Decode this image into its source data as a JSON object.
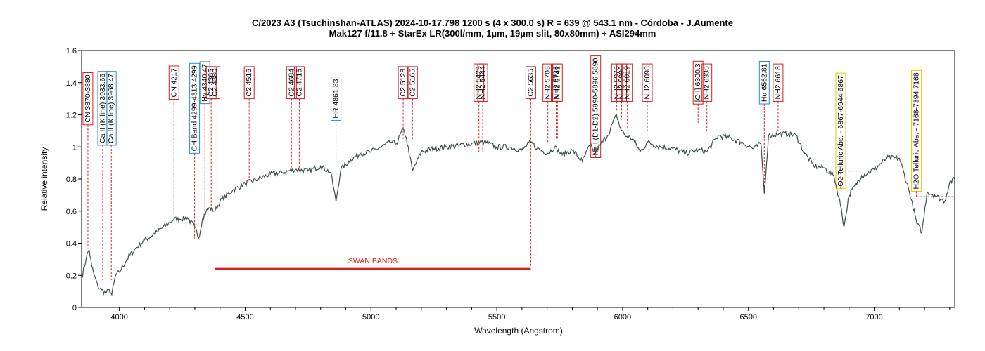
{
  "chart_data": {
    "type": "line",
    "title": "C/2023 A3 (Tsuchinshan-ATLAS)  2024-10-17.798  1200 s (4 x 300.0 s)  R = 639 @ 543.1 nm - Córdoba - J.Aumente",
    "subtitle": "Mak127 f/11.8 + StarEx LR(300l/mm, 1µm, 19µm slit, 80x80mm) + ASI294mm",
    "xlabel": "Wavelength (Angstrom)",
    "ylabel": "Relative intensity",
    "xlim": [
      3850,
      7320
    ],
    "ylim": [
      0,
      1.6
    ],
    "x_ticks": [
      4000,
      4500,
      5000,
      5500,
      6000,
      6500,
      7000
    ],
    "y_ticks": [
      0,
      0.2,
      0.4,
      0.6,
      0.8,
      1,
      1.2,
      1.4,
      1.6
    ],
    "grid": false,
    "line_color": "#3d4f4f",
    "series": [
      {
        "x": [
          3850,
          3870,
          3880,
          3890,
          3900,
          3915,
          3930,
          3945,
          3960,
          3970,
          3985,
          4000,
          4030,
          4060,
          4100,
          4150,
          4200,
          4217,
          4240,
          4270,
          4300,
          4315,
          4330,
          4345,
          4360,
          4380,
          4400,
          4450,
          4500,
          4550,
          4600,
          4650,
          4700,
          4750,
          4800,
          4840,
          4861,
          4880,
          4920,
          4960,
          5000,
          5040,
          5080,
          5100,
          5128,
          5140,
          5165,
          5200,
          5250,
          5300,
          5350,
          5400,
          5450,
          5500,
          5550,
          5600,
          5635,
          5660,
          5703,
          5730,
          5760,
          5800,
          5840,
          5870,
          5890,
          5910,
          5940,
          5976,
          5990,
          6010,
          6040,
          6070,
          6100,
          6150,
          6200,
          6250,
          6300,
          6335,
          6380,
          6420,
          6470,
          6520,
          6550,
          6563,
          6580,
          6620,
          6660,
          6690,
          6720,
          6760,
          6800,
          6840,
          6870,
          6880,
          6900,
          6950,
          7000,
          7050,
          7100,
          7140,
          7170,
          7190,
          7210,
          7240,
          7280,
          7300,
          7320
        ],
        "y": [
          0.18,
          0.32,
          0.36,
          0.26,
          0.2,
          0.13,
          0.11,
          0.09,
          0.11,
          0.08,
          0.2,
          0.22,
          0.3,
          0.36,
          0.42,
          0.47,
          0.53,
          0.55,
          0.55,
          0.56,
          0.5,
          0.43,
          0.55,
          0.6,
          0.62,
          0.6,
          0.66,
          0.73,
          0.77,
          0.8,
          0.83,
          0.84,
          0.86,
          0.85,
          0.88,
          0.84,
          0.66,
          0.86,
          0.92,
          0.96,
          0.97,
          1.0,
          1.03,
          1.02,
          1.11,
          1.06,
          0.85,
          0.97,
          0.99,
          1.0,
          1.01,
          1.02,
          1.03,
          1.0,
          1.0,
          0.98,
          1.03,
          0.99,
          0.96,
          1.0,
          0.95,
          0.98,
          0.91,
          1.01,
          0.97,
          1.01,
          1.07,
          1.2,
          1.12,
          1.07,
          1.05,
          0.97,
          1.03,
          1.0,
          0.99,
          0.96,
          0.98,
          0.97,
          1.07,
          1.06,
          1.03,
          0.99,
          1.02,
          0.71,
          1.07,
          1.08,
          1.08,
          1.07,
          0.97,
          0.88,
          0.87,
          0.82,
          0.61,
          0.5,
          0.7,
          0.82,
          0.86,
          0.93,
          0.93,
          0.72,
          0.52,
          0.47,
          0.72,
          0.7,
          0.66,
          0.78,
          0.8
        ]
      }
    ],
    "swan_bands": {
      "label": "SWAN   BANDS",
      "x_start": 4380,
      "x_end": 5635,
      "y": 0.24
    },
    "annotations": [
      {
        "label": "CN 3870-3880",
        "x": 3875,
        "y_label": 1.3,
        "line_to": 0.37,
        "style": "red"
      },
      {
        "label": "Ca II (K line) 3933.66",
        "x": 3934,
        "y_label": 1.24,
        "line_to": 0.17,
        "style": "blue"
      },
      {
        "label": "Ca II (K line) 3968.47",
        "x": 3968,
        "y_label": 1.24,
        "line_to": 0.17,
        "style": "blue"
      },
      {
        "label": "CN 4217",
        "x": 4217,
        "y_label": 1.4,
        "line_to": 0.58,
        "style": "red"
      },
      {
        "label": "CH Band 4299-4313 4299",
        "x": 4299,
        "y_label": 1.24,
        "line_to": 0.43,
        "style": "blue"
      },
      {
        "label": "Hγ 4340.47",
        "x": 4340,
        "y_label": 1.4,
        "line_to": 0.55,
        "style": "blue"
      },
      {
        "label": "C2 4365",
        "x": 4365,
        "y_label": 1.4,
        "line_to": 0.6,
        "style": "red"
      },
      {
        "label": "C2 4380",
        "x": 4380,
        "y_label": 1.4,
        "line_to": 0.6,
        "style": "red"
      },
      {
        "label": "C2 4516",
        "x": 4516,
        "y_label": 1.4,
        "line_to": 0.8,
        "style": "red"
      },
      {
        "label": "C2 4684",
        "x": 4684,
        "y_label": 1.4,
        "line_to": 0.85,
        "style": "red"
      },
      {
        "label": "C2 4715",
        "x": 4715,
        "y_label": 1.4,
        "line_to": 0.85,
        "style": "red"
      },
      {
        "label": "HR 4861.33",
        "x": 4861,
        "y_label": 1.3,
        "line_to": 0.66,
        "style": "blue"
      },
      {
        "label": "C2 5128",
        "x": 5128,
        "y_label": 1.4,
        "line_to": 1.05,
        "style": "red"
      },
      {
        "label": "C2 5165",
        "x": 5165,
        "y_label": 1.4,
        "line_to": 1.05,
        "style": "red"
      },
      {
        "label": "NH2 5429",
        "x": 5429,
        "y_label": 1.4,
        "line_to": 0.97,
        "style": "red"
      },
      {
        "label": "NH2 5444",
        "x": 5444,
        "y_label": 1.4,
        "line_to": 0.97,
        "style": "red"
      },
      {
        "label": "C2 5635",
        "x": 5635,
        "y_label": 1.4,
        "line_to": 0.25,
        "style": "red"
      },
      {
        "label": "NH2 5703",
        "x": 5703,
        "y_label": 1.4,
        "line_to": 1.03,
        "style": "red"
      },
      {
        "label": "NH2 5736",
        "x": 5736,
        "y_label": 1.4,
        "line_to": 1.05,
        "style": "red"
      },
      {
        "label": "NH2 5741",
        "x": 5741,
        "y_label": 1.4,
        "line_to": 1.05,
        "style": "red"
      },
      {
        "label": "Na I (D1-D2) 5890-5896 5890",
        "x": 5893,
        "y_label": 1.25,
        "line_to": 0.98,
        "style": "red"
      },
      {
        "label": "NH2 5976",
        "x": 5976,
        "y_label": 1.4,
        "line_to": 1.22,
        "style": "red"
      },
      {
        "label": "NH2 5996",
        "x": 5996,
        "y_label": 1.4,
        "line_to": 1.17,
        "style": "red"
      },
      {
        "label": "NH2 6019",
        "x": 6019,
        "y_label": 1.4,
        "line_to": 1.12,
        "style": "red"
      },
      {
        "label": "NH2 6098",
        "x": 6098,
        "y_label": 1.4,
        "line_to": 1.1,
        "style": "red"
      },
      {
        "label": "[O I] 6300.3",
        "x": 6300,
        "y_label": 1.4,
        "line_to": 1.15,
        "style": "red"
      },
      {
        "label": "NH2 6335",
        "x": 6335,
        "y_label": 1.4,
        "line_to": 1.1,
        "style": "red"
      },
      {
        "label": "Hα 6562.81",
        "x": 6563,
        "y_label": 1.4,
        "line_to": 0.71,
        "style": "blue"
      },
      {
        "label": "NH2 6618",
        "x": 6618,
        "y_label": 1.4,
        "line_to": 1.1,
        "style": "red"
      },
      {
        "label": "O2 Telluric Abs. - 6867-6944 6867",
        "x": 6867,
        "y_label": 1.1,
        "line_to": 0.85,
        "style": "yellow",
        "band_end": 6944
      },
      {
        "label": "H2O Telluric Abs. - 7168-7394 7168",
        "x": 7168,
        "y_label": 1.1,
        "line_to": 0.69,
        "style": "yellow",
        "band_end": 7394
      }
    ]
  }
}
